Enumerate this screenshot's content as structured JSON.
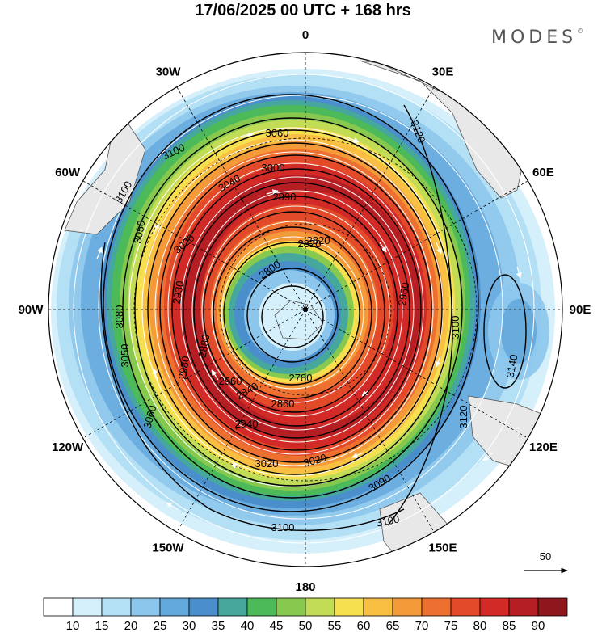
{
  "title": "17/06/2025  00 UTC  + 168 hrs",
  "brand": "MODES",
  "brand_mark": "©",
  "reference_vector": {
    "label": "50"
  },
  "longitude_labels": [
    {
      "name": "lon-0",
      "text": "0",
      "angle_deg": 0
    },
    {
      "name": "lon-30e",
      "text": "30E",
      "angle_deg": 30
    },
    {
      "name": "lon-60e",
      "text": "60E",
      "angle_deg": 60
    },
    {
      "name": "lon-90e",
      "text": "90E",
      "angle_deg": 90
    },
    {
      "name": "lon-120e",
      "text": "120E",
      "angle_deg": 120
    },
    {
      "name": "lon-150e",
      "text": "150E",
      "angle_deg": 150
    },
    {
      "name": "lon-180",
      "text": "180",
      "angle_deg": 180
    },
    {
      "name": "lon-150w",
      "text": "150W",
      "angle_deg": 210
    },
    {
      "name": "lon-120w",
      "text": "120W",
      "angle_deg": 240
    },
    {
      "name": "lon-90w",
      "text": "90W",
      "angle_deg": 270
    },
    {
      "name": "lon-60w",
      "text": "60W",
      "angle_deg": 300
    },
    {
      "name": "lon-30w",
      "text": "30W",
      "angle_deg": 330
    }
  ],
  "wind_speed_bands": [
    {
      "level": "0-10",
      "color": "#ffffff"
    },
    {
      "level": "10-15",
      "color": "#d6f0fb"
    },
    {
      "level": "15-20",
      "color": "#b4e0f5"
    },
    {
      "level": "20-25",
      "color": "#8cc6ec"
    },
    {
      "level": "25-30",
      "color": "#64a9dc"
    },
    {
      "level": "30-35",
      "color": "#4a8fcb"
    },
    {
      "level": "35-40",
      "color": "#46a89c"
    },
    {
      "level": "40-45",
      "color": "#4cba59"
    },
    {
      "level": "45-50",
      "color": "#86c94e"
    },
    {
      "level": "50-55",
      "color": "#c3dc55"
    },
    {
      "level": "55-60",
      "color": "#f7e050"
    },
    {
      "level": "60-65",
      "color": "#f8bf43"
    },
    {
      "level": "65-70",
      "color": "#f49a39"
    },
    {
      "level": "70-75",
      "color": "#ee7030"
    },
    {
      "level": "75-80",
      "color": "#e24a2a"
    },
    {
      "level": "80-85",
      "color": "#d22a26"
    },
    {
      "level": "85-90",
      "color": "#b51e22"
    },
    {
      "level": ">90",
      "color": "#8e161c"
    }
  ],
  "colorbar_ticks": [
    "10",
    "15",
    "20",
    "25",
    "30",
    "35",
    "40",
    "45",
    "50",
    "55",
    "60",
    "65",
    "70",
    "75",
    "80",
    "85",
    "90"
  ],
  "contour_labels": [
    "3060",
    "3040",
    "3000",
    "2990",
    "2820",
    "2800",
    "3100",
    "3100",
    "3120",
    "3050",
    "3080",
    "3050",
    "3060",
    "2780",
    "2860",
    "2840",
    "2940",
    "2960",
    "3020",
    "3020",
    "3090",
    "3100",
    "3100",
    "3120",
    "3140",
    "3100",
    "2960",
    "2820",
    "2980",
    "2880",
    "2930",
    "3020"
  ]
}
